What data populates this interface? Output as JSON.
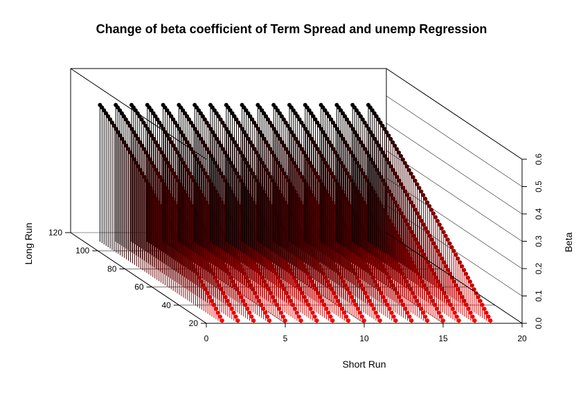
{
  "chart_data": {
    "type": "scatter",
    "subtype": "3d-scatter-with-drop-lines",
    "title": "Change of beta coefficient of Term Spread and unemp Regression",
    "xlabel": "Short Run",
    "ylabel": "Long Run",
    "zlabel": "Beta",
    "xlim": [
      0,
      20
    ],
    "ylim": [
      20,
      120
    ],
    "zlim": [
      0.0,
      0.6
    ],
    "x_ticks": [
      "0",
      "5",
      "10",
      "15",
      "20"
    ],
    "y_ticks": [
      "20",
      "40",
      "60",
      "80",
      "100",
      "120"
    ],
    "z_ticks": [
      "0.0",
      "0.1",
      "0.2",
      "0.3",
      "0.4",
      "0.5",
      "0.6"
    ],
    "grid": true,
    "box": true,
    "color_gradient": {
      "low": "#ff0000",
      "high": "#000000"
    },
    "series": [
      {
        "x": 1,
        "y_range": [
          20,
          110
        ],
        "beta_at_long_run_20": 0.01,
        "beta_at_long_run_110": 0.5
      },
      {
        "x": 2,
        "y_range": [
          20,
          110
        ],
        "beta_at_long_run_20": 0.01,
        "beta_at_long_run_110": 0.5
      },
      {
        "x": 3,
        "y_range": [
          20,
          110
        ],
        "beta_at_long_run_20": 0.01,
        "beta_at_long_run_110": 0.5
      },
      {
        "x": 4,
        "y_range": [
          20,
          110
        ],
        "beta_at_long_run_20": 0.01,
        "beta_at_long_run_110": 0.5
      },
      {
        "x": 5,
        "y_range": [
          20,
          110
        ],
        "beta_at_long_run_20": 0.01,
        "beta_at_long_run_110": 0.5
      },
      {
        "x": 6,
        "y_range": [
          20,
          110
        ],
        "beta_at_long_run_20": 0.01,
        "beta_at_long_run_110": 0.5
      },
      {
        "x": 7,
        "y_range": [
          20,
          110
        ],
        "beta_at_long_run_20": 0.01,
        "beta_at_long_run_110": 0.5
      },
      {
        "x": 8,
        "y_range": [
          20,
          110
        ],
        "beta_at_long_run_20": 0.01,
        "beta_at_long_run_110": 0.5
      },
      {
        "x": 9,
        "y_range": [
          20,
          110
        ],
        "beta_at_long_run_20": 0.01,
        "beta_at_long_run_110": 0.5
      },
      {
        "x": 10,
        "y_range": [
          20,
          110
        ],
        "beta_at_long_run_20": 0.01,
        "beta_at_long_run_110": 0.5
      },
      {
        "x": 11,
        "y_range": [
          20,
          110
        ],
        "beta_at_long_run_20": 0.01,
        "beta_at_long_run_110": 0.5
      },
      {
        "x": 12,
        "y_range": [
          20,
          110
        ],
        "beta_at_long_run_20": 0.01,
        "beta_at_long_run_110": 0.5
      },
      {
        "x": 13,
        "y_range": [
          20,
          110
        ],
        "beta_at_long_run_20": 0.01,
        "beta_at_long_run_110": 0.5
      },
      {
        "x": 14,
        "y_range": [
          20,
          110
        ],
        "beta_at_long_run_20": 0.01,
        "beta_at_long_run_110": 0.5
      },
      {
        "x": 15,
        "y_range": [
          20,
          110
        ],
        "beta_at_long_run_20": 0.01,
        "beta_at_long_run_110": 0.5
      },
      {
        "x": 16,
        "y_range": [
          20,
          110
        ],
        "beta_at_long_run_20": 0.01,
        "beta_at_long_run_110": 0.5
      },
      {
        "x": 17,
        "y_range": [
          20,
          110
        ],
        "beta_at_long_run_20": 0.01,
        "beta_at_long_run_110": 0.5
      },
      {
        "x": 18,
        "y_range": [
          20,
          110
        ],
        "beta_at_long_run_20": 0.01,
        "beta_at_long_run_110": 0.5
      }
    ]
  }
}
